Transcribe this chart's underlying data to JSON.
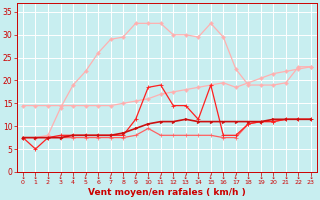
{
  "x": [
    0,
    1,
    2,
    3,
    4,
    5,
    6,
    7,
    8,
    9,
    10,
    11,
    12,
    13,
    14,
    15,
    16,
    17,
    18,
    19,
    20,
    21,
    22,
    23
  ],
  "line_rafales_max": [
    7.5,
    7.5,
    8.0,
    14.0,
    19.0,
    22.0,
    26.0,
    29.0,
    29.5,
    32.5,
    32.5,
    32.5,
    30.0,
    30.0,
    29.5,
    32.5,
    29.5,
    22.5,
    19.0,
    19.0,
    19.0,
    19.5,
    23.0,
    23.0
  ],
  "line_vent_haut": [
    14.5,
    14.5,
    14.5,
    14.5,
    14.5,
    14.5,
    14.5,
    14.5,
    15.0,
    15.5,
    16.0,
    17.0,
    17.5,
    18.0,
    18.5,
    19.0,
    19.5,
    18.5,
    19.5,
    20.5,
    21.5,
    22.0,
    22.5,
    23.0
  ],
  "line_jagged1": [
    7.5,
    5.0,
    7.5,
    8.0,
    8.0,
    8.0,
    8.0,
    8.0,
    8.0,
    11.5,
    18.5,
    19.0,
    14.5,
    14.5,
    11.5,
    19.0,
    8.0,
    8.0,
    10.5,
    11.0,
    11.0,
    11.5,
    11.5,
    11.5
  ],
  "line_jagged2": [
    7.5,
    7.5,
    7.5,
    7.5,
    7.5,
    7.5,
    7.5,
    7.5,
    7.5,
    8.0,
    9.5,
    8.0,
    8.0,
    8.0,
    8.0,
    8.0,
    7.5,
    7.5,
    10.5,
    11.0,
    11.0,
    11.5,
    11.5,
    11.5
  ],
  "line_smooth": [
    7.5,
    7.5,
    7.5,
    7.5,
    8.0,
    8.0,
    8.0,
    8.0,
    8.5,
    9.5,
    10.5,
    11.0,
    11.0,
    11.5,
    11.0,
    11.0,
    11.0,
    11.0,
    11.0,
    11.0,
    11.5,
    11.5,
    11.5,
    11.5
  ],
  "background": "#c8eef0",
  "grid_color": "#ffffff",
  "color_rafales_max": "#ffb0b0",
  "color_vent_haut": "#ffb0b0",
  "color_jagged1": "#ff2020",
  "color_jagged2": "#ff6060",
  "color_smooth": "#cc1010",
  "xlabel": "Vent moyen/en rafales ( km/h )",
  "ylim": [
    0,
    37
  ],
  "xlim": [
    -0.5,
    23.5
  ],
  "yticks": [
    0,
    5,
    10,
    15,
    20,
    25,
    30,
    35
  ],
  "xticks": [
    0,
    1,
    2,
    3,
    4,
    5,
    6,
    7,
    8,
    9,
    10,
    11,
    12,
    13,
    14,
    15,
    16,
    17,
    18,
    19,
    20,
    21,
    22,
    23
  ],
  "tick_color": "#cc0000",
  "label_color": "#cc0000",
  "xlabel_fontsize": 6.5,
  "ytick_fontsize": 5.5,
  "xtick_fontsize": 4.5
}
